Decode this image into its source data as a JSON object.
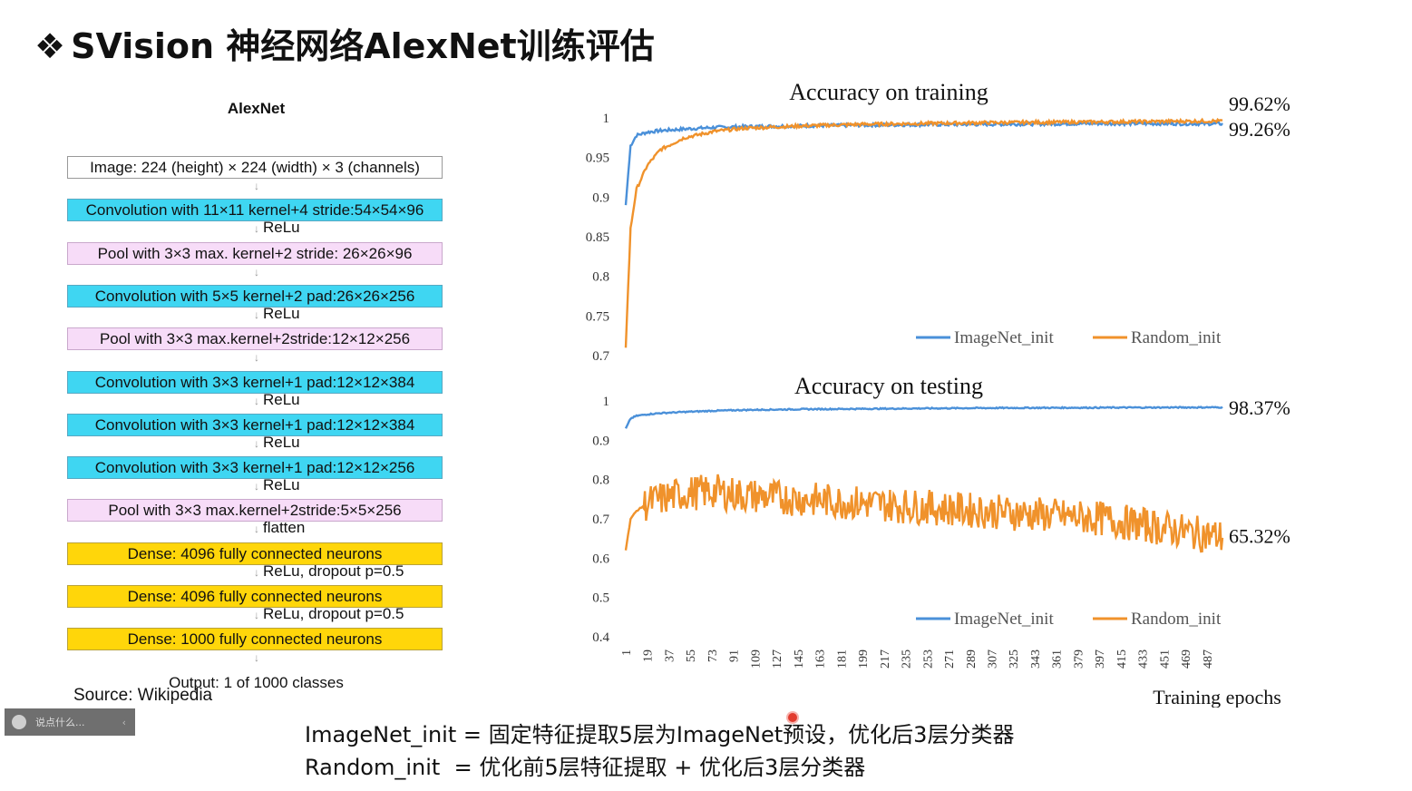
{
  "slide": {
    "title_bullet": "❖",
    "title": "SVision 神经网络AlexNet训练评估"
  },
  "alexnet": {
    "title": "AlexNet",
    "input": "Image: 224 (height) × 224 (width) × 3 (channels)",
    "layers": [
      {
        "type": "conv",
        "label": "Convolution with 11×11 kernel+4 stride:54×54×96",
        "after": "ReLu"
      },
      {
        "type": "pool",
        "label": "Pool with 3×3 max. kernel+2 stride: 26×26×96",
        "after": ""
      },
      {
        "type": "conv",
        "label": "Convolution with 5×5 kernel+2 pad:26×26×256",
        "after": "ReLu"
      },
      {
        "type": "pool",
        "label": "Pool with 3×3 max.kernel+2stride:12×12×256",
        "after": ""
      },
      {
        "type": "conv",
        "label": "Convolution with 3×3 kernel+1 pad:12×12×384",
        "after": "ReLu"
      },
      {
        "type": "conv",
        "label": "Convolution with 3×3 kernel+1 pad:12×12×384",
        "after": "ReLu"
      },
      {
        "type": "conv",
        "label": "Convolution with 3×3 kernel+1 pad:12×12×256",
        "after": "ReLu"
      },
      {
        "type": "pool",
        "label": "Pool with 3×3 max.kernel+2stride:5×5×256",
        "after": "flatten"
      },
      {
        "type": "dense",
        "label": "Dense: 4096 fully connected neurons",
        "after": "ReLu, dropout p=0.5"
      },
      {
        "type": "dense",
        "label": "Dense: 4096 fully connected neurons",
        "after": "ReLu, dropout p=0.5"
      },
      {
        "type": "dense",
        "label": "Dense: 1000 fully connected neurons",
        "after": ""
      }
    ],
    "output": "Output: 1 of 1000 classes",
    "source": "Source: Wikipedia"
  },
  "chat_bar": {
    "placeholder": "说点什么...",
    "collapse": "‹"
  },
  "notes": {
    "line1": "ImageNet_init = 固定特征提取5层为ImageNet预设，优化后3层分类器",
    "line2": "Random_init  = 优化前5层特征提取 + 优化后3层分类器"
  },
  "chart_data": [
    {
      "type": "line",
      "title": "Accuracy on training",
      "xlabel": "Training epochs",
      "ylabel": "",
      "ylim": [
        0.7,
        1.0
      ],
      "yticks": [
        "0.7",
        "0.75",
        "0.8",
        "0.85",
        "0.9",
        "0.95",
        "1"
      ],
      "x": [
        1,
        5,
        10,
        19,
        30,
        50,
        75,
        100,
        150,
        200,
        300,
        400,
        500
      ],
      "series": [
        {
          "name": "ImageNet_init",
          "color": "#4a90d9",
          "values": [
            0.89,
            0.965,
            0.978,
            0.982,
            0.984,
            0.986,
            0.988,
            0.989,
            0.99,
            0.991,
            0.992,
            0.993,
            0.9926
          ]
        },
        {
          "name": "Random_init",
          "color": "#f0922b",
          "values": [
            0.71,
            0.86,
            0.91,
            0.94,
            0.96,
            0.975,
            0.983,
            0.987,
            0.99,
            0.992,
            0.994,
            0.995,
            0.9962
          ]
        }
      ],
      "end_labels": [
        "99.62%",
        "99.26%"
      ],
      "legend": "bottom-right"
    },
    {
      "type": "line",
      "title": "Accuracy on testing",
      "xlabel": "Training epochs",
      "ylabel": "",
      "ylim": [
        0.4,
        1.0
      ],
      "yticks": [
        "0.4",
        "0.5",
        "0.6",
        "0.7",
        "0.8",
        "0.9",
        "1"
      ],
      "x": [
        1,
        5,
        10,
        19,
        30,
        50,
        75,
        100,
        150,
        200,
        300,
        400,
        500
      ],
      "series": [
        {
          "name": "ImageNet_init",
          "color": "#4a90d9",
          "values": [
            0.93,
            0.955,
            0.962,
            0.966,
            0.969,
            0.972,
            0.975,
            0.977,
            0.979,
            0.98,
            0.982,
            0.983,
            0.9837
          ]
        },
        {
          "name": "Random_init",
          "color": "#f0922b",
          "values": [
            0.62,
            0.7,
            0.72,
            0.74,
            0.75,
            0.765,
            0.77,
            0.76,
            0.75,
            0.74,
            0.72,
            0.7,
            0.6532
          ]
        }
      ],
      "end_labels": [
        "98.37%",
        "65.32%"
      ],
      "legend": "bottom-right"
    }
  ],
  "x_tick_labels": [
    "1",
    "19",
    "37",
    "55",
    "73",
    "91",
    "109",
    "127",
    "145",
    "163",
    "181",
    "199",
    "217",
    "235",
    "253",
    "271",
    "289",
    "307",
    "325",
    "343",
    "361",
    "379",
    "397",
    "415",
    "433",
    "451",
    "469",
    "487"
  ]
}
